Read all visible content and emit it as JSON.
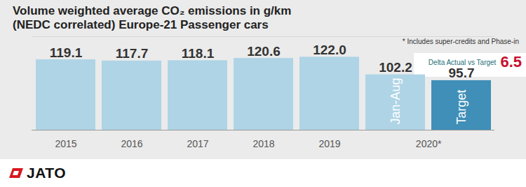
{
  "chart_data": {
    "type": "bar",
    "title": "Volume weighted average CO₂ emissions in g/km (NEDC correlated) Europe-21 Passenger cars",
    "note": "* Includes super-credits and Phase-in",
    "categories": [
      "2015",
      "2016",
      "2017",
      "2018",
      "2019",
      "2020*",
      "2020*"
    ],
    "bar_labels": [
      null,
      null,
      null,
      null,
      null,
      "Jan-Aug",
      "Target"
    ],
    "values": [
      119.1,
      117.7,
      118.1,
      120.6,
      122.0,
      102.2,
      95.7
    ],
    "value_labels": [
      "119.1",
      "117.7",
      "118.1",
      "120.6",
      "122.0",
      "102.2",
      "95.7"
    ],
    "colors": [
      "#aed4e6",
      "#aed4e6",
      "#aed4e6",
      "#aed4e6",
      "#aed4e6",
      "#aed4e6",
      "#3f8fb8"
    ],
    "data_labels": true,
    "ylim": [
      40,
      145
    ],
    "yticks": [],
    "tick_labels": "x",
    "grid": false,
    "annotation": {
      "text": "Delta Actual vs Target",
      "value": 6.5
    }
  },
  "logo": "JATO"
}
